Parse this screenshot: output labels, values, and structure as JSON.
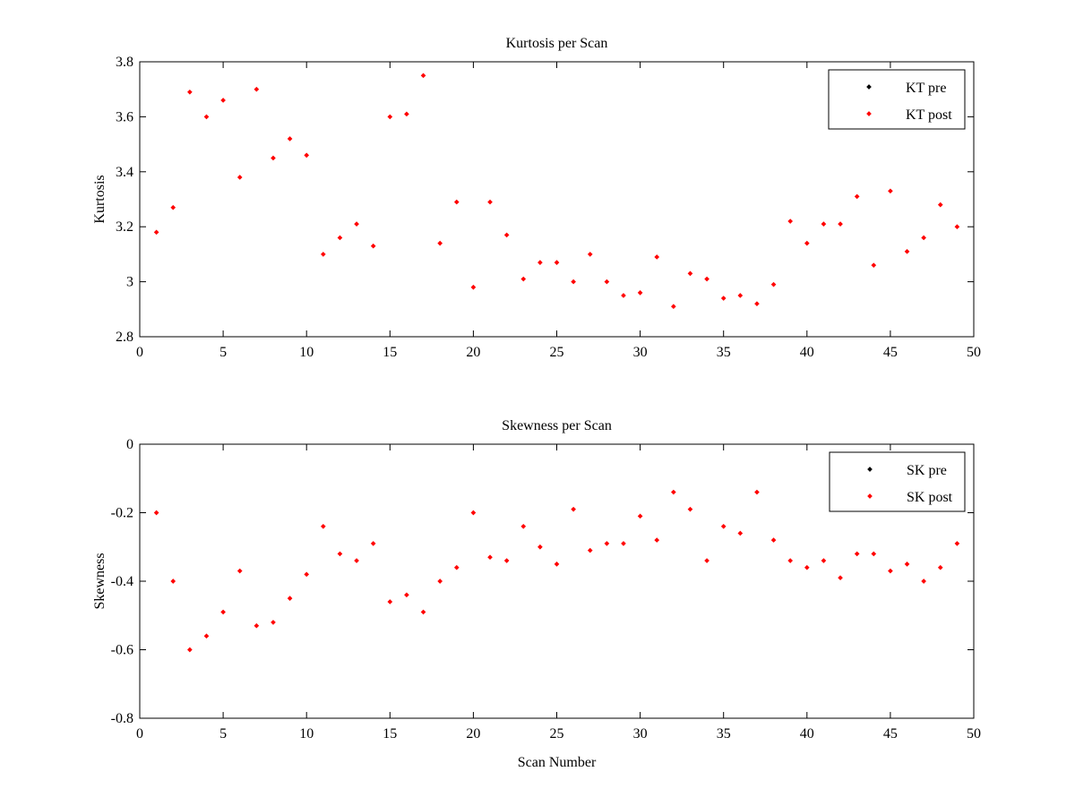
{
  "chart_data": [
    {
      "type": "scatter",
      "title": "Kurtosis per Scan",
      "xlabel": "",
      "ylabel": "Kurtosis",
      "xlim": [
        0,
        50
      ],
      "ylim": [
        2.8,
        3.8
      ],
      "xticks": [
        "0",
        "5",
        "10",
        "15",
        "20",
        "25",
        "30",
        "35",
        "40",
        "45",
        "50"
      ],
      "yticks": [
        "2.8",
        "3",
        "3.2",
        "3.4",
        "3.6",
        "3.8"
      ],
      "legend": {
        "position": "top-right",
        "entries": [
          {
            "label": "KT pre",
            "color": "#000000"
          },
          {
            "label": "KT post",
            "color": "#ff0000"
          }
        ]
      },
      "series": [
        {
          "name": "KT post",
          "color": "#ff0000",
          "x": [
            1,
            2,
            3,
            4,
            5,
            6,
            7,
            8,
            9,
            10,
            11,
            12,
            13,
            14,
            15,
            16,
            17,
            18,
            19,
            20,
            21,
            22,
            23,
            24,
            25,
            26,
            27,
            28,
            29,
            30,
            31,
            32,
            33,
            34,
            35,
            36,
            37,
            38,
            39,
            40,
            41,
            42,
            43,
            44,
            45,
            46,
            47,
            48,
            49
          ],
          "y": [
            3.18,
            3.27,
            3.69,
            3.6,
            3.66,
            3.38,
            3.7,
            3.45,
            3.52,
            3.46,
            3.1,
            3.16,
            3.21,
            3.13,
            3.6,
            3.61,
            3.75,
            3.14,
            3.29,
            2.98,
            3.29,
            3.17,
            3.01,
            3.07,
            3.07,
            3.0,
            3.1,
            3.0,
            2.95,
            2.96,
            3.09,
            2.91,
            3.03,
            3.01,
            2.94,
            2.95,
            2.92,
            2.99,
            3.22,
            3.14,
            3.21,
            3.21,
            3.31,
            3.06,
            3.33,
            3.11,
            3.16,
            3.28,
            3.2
          ]
        }
      ]
    },
    {
      "type": "scatter",
      "title": "Skewness per Scan",
      "xlabel": "Scan Number",
      "ylabel": "Skewness",
      "xlim": [
        0,
        50
      ],
      "ylim": [
        -0.8,
        0
      ],
      "xticks": [
        "0",
        "5",
        "10",
        "15",
        "20",
        "25",
        "30",
        "35",
        "40",
        "45",
        "50"
      ],
      "yticks": [
        "-0.8",
        "-0.6",
        "-0.4",
        "-0.2",
        "0"
      ],
      "legend": {
        "position": "top-right",
        "entries": [
          {
            "label": "SK pre",
            "color": "#000000"
          },
          {
            "label": "SK post",
            "color": "#ff0000"
          }
        ]
      },
      "series": [
        {
          "name": "SK post",
          "color": "#ff0000",
          "x": [
            1,
            2,
            3,
            4,
            5,
            6,
            7,
            8,
            9,
            10,
            11,
            12,
            13,
            14,
            15,
            16,
            17,
            18,
            19,
            20,
            21,
            22,
            23,
            24,
            25,
            26,
            27,
            28,
            29,
            30,
            31,
            32,
            33,
            34,
            35,
            36,
            37,
            38,
            39,
            40,
            41,
            42,
            43,
            44,
            45,
            46,
            47,
            48,
            49
          ],
          "y": [
            -0.2,
            -0.4,
            -0.6,
            -0.56,
            -0.49,
            -0.37,
            -0.53,
            -0.52,
            -0.45,
            -0.38,
            -0.24,
            -0.32,
            -0.34,
            -0.29,
            -0.46,
            -0.44,
            -0.49,
            -0.4,
            -0.36,
            -0.2,
            -0.33,
            -0.34,
            -0.24,
            -0.3,
            -0.35,
            -0.19,
            -0.31,
            -0.29,
            -0.29,
            -0.21,
            -0.28,
            -0.14,
            -0.19,
            -0.34,
            -0.24,
            -0.26,
            -0.14,
            -0.28,
            -0.34,
            -0.36,
            -0.34,
            -0.39,
            -0.32,
            -0.32,
            -0.37,
            -0.35,
            -0.4,
            -0.36,
            -0.29
          ]
        }
      ]
    }
  ]
}
